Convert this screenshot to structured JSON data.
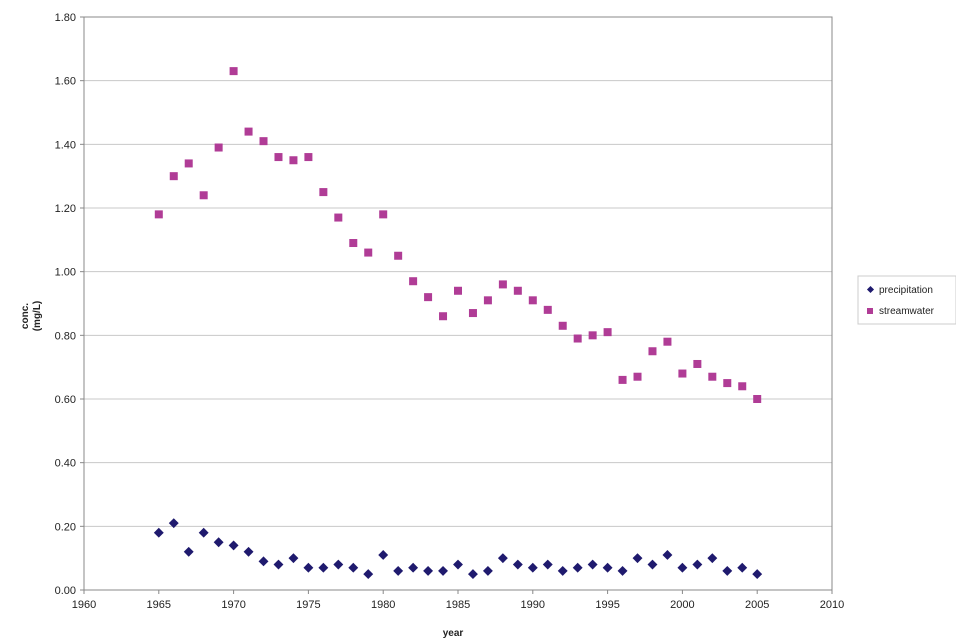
{
  "chart_data": {
    "type": "scatter",
    "title": "",
    "xlabel": "year",
    "ylabel_line1": "conc.",
    "ylabel_line2": "(mg/L)",
    "xlim": [
      1960,
      2010
    ],
    "ylim": [
      0,
      1.8
    ],
    "x_ticks": [
      1960,
      1965,
      1970,
      1975,
      1980,
      1985,
      1990,
      1995,
      2000,
      2005,
      2010
    ],
    "y_ticks": [
      0.0,
      0.2,
      0.4,
      0.6,
      0.8,
      1.0,
      1.2,
      1.4,
      1.6,
      1.8
    ],
    "y_tick_labels": [
      "0.00",
      "0.20",
      "0.40",
      "0.60",
      "0.80",
      "1.00",
      "1.20",
      "1.40",
      "1.60",
      "1.80"
    ],
    "grid": "horizontal",
    "legend_position": "right",
    "series": [
      {
        "name": "precipitation",
        "marker": "diamond",
        "color": "#1f1a6e",
        "x": [
          1965,
          1966,
          1967,
          1968,
          1969,
          1970,
          1971,
          1972,
          1973,
          1974,
          1975,
          1976,
          1977,
          1978,
          1979,
          1980,
          1981,
          1982,
          1983,
          1984,
          1985,
          1986,
          1987,
          1988,
          1989,
          1990,
          1991,
          1992,
          1993,
          1994,
          1995,
          1996,
          1997,
          1998,
          1999,
          2000,
          2001,
          2002,
          2003,
          2004,
          2005
        ],
        "y": [
          0.18,
          0.21,
          0.12,
          0.18,
          0.15,
          0.14,
          0.12,
          0.09,
          0.08,
          0.1,
          0.07,
          0.07,
          0.08,
          0.07,
          0.05,
          0.11,
          0.06,
          0.07,
          0.06,
          0.06,
          0.08,
          0.05,
          0.06,
          0.1,
          0.08,
          0.07,
          0.08,
          0.06,
          0.07,
          0.08,
          0.07,
          0.06,
          0.1,
          0.08,
          0.11,
          0.07,
          0.08,
          0.1,
          0.06,
          0.07,
          0.05
        ]
      },
      {
        "name": "streamwater",
        "marker": "square",
        "color": "#b03c96",
        "x": [
          1965,
          1966,
          1967,
          1968,
          1969,
          1970,
          1971,
          1972,
          1973,
          1974,
          1975,
          1976,
          1977,
          1978,
          1979,
          1980,
          1981,
          1982,
          1983,
          1984,
          1985,
          1986,
          1987,
          1988,
          1989,
          1990,
          1991,
          1992,
          1993,
          1994,
          1995,
          1996,
          1997,
          1998,
          1999,
          2000,
          2001,
          2002,
          2003,
          2004,
          2005
        ],
        "y": [
          1.18,
          1.3,
          1.34,
          1.24,
          1.39,
          1.63,
          1.44,
          1.41,
          1.36,
          1.35,
          1.36,
          1.25,
          1.17,
          1.09,
          1.06,
          1.18,
          1.05,
          0.97,
          0.92,
          0.86,
          0.94,
          0.87,
          0.91,
          0.96,
          0.94,
          0.91,
          0.88,
          0.83,
          0.79,
          0.8,
          0.81,
          0.66,
          0.67,
          0.75,
          0.78,
          0.68,
          0.71,
          0.67,
          0.65,
          0.64,
          0.6
        ]
      }
    ]
  }
}
